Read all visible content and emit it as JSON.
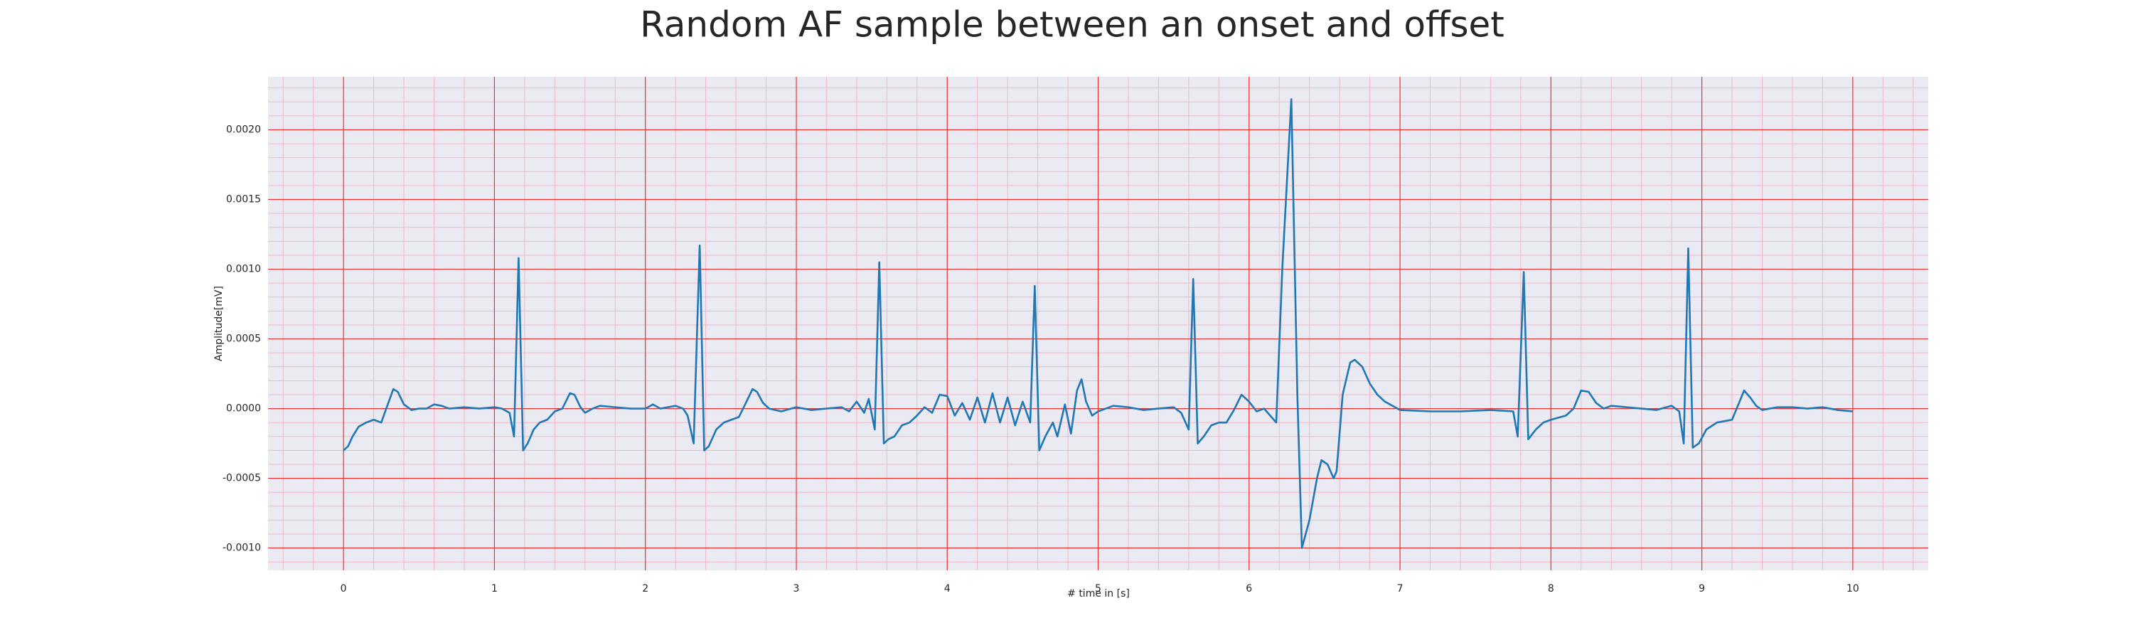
{
  "chart_data": {
    "type": "line",
    "title": "Random AF sample between an onset and offset",
    "xlabel": "# time in [s]",
    "ylabel": "Amplitude[mV]",
    "background": "#eaeaf2",
    "grid": true,
    "grid_color": "#ee3333",
    "minor_grid": true,
    "minor_grid_color": "#f4b6c6",
    "xlim": [
      -0.5,
      10.5
    ],
    "ylim": [
      -0.00116,
      0.00238
    ],
    "xticks": [
      0,
      1,
      2,
      3,
      4,
      5,
      6,
      7,
      8,
      9,
      10
    ],
    "yticks": [
      {
        "value": -0.001,
        "label": "-0.0010"
      },
      {
        "value": -0.0005,
        "label": "-0.0005"
      },
      {
        "value": 0,
        "label": "0.0000"
      },
      {
        "value": 0.0005,
        "label": "0.0005"
      },
      {
        "value": 0.001,
        "label": "0.0010"
      },
      {
        "value": 0.0015,
        "label": "0.0015"
      },
      {
        "value": 0.002,
        "label": "0.0020"
      }
    ],
    "series": [
      {
        "color": "#1f77b4",
        "x": [
          0,
          0.03,
          0.06,
          0.1,
          0.15,
          0.2,
          0.25,
          0.3,
          0.33,
          0.36,
          0.4,
          0.45,
          0.5,
          0.55,
          0.6,
          0.65,
          0.7,
          0.8,
          0.9,
          1.0,
          1.05,
          1.1,
          1.13,
          1.16,
          1.19,
          1.22,
          1.26,
          1.3,
          1.35,
          1.4,
          1.45,
          1.5,
          1.53,
          1.57,
          1.6,
          1.65,
          1.7,
          1.8,
          1.9,
          2.0,
          2.05,
          2.1,
          2.15,
          2.2,
          2.25,
          2.28,
          2.32,
          2.36,
          2.39,
          2.42,
          2.47,
          2.52,
          2.57,
          2.62,
          2.67,
          2.71,
          2.74,
          2.78,
          2.82,
          2.9,
          3.0,
          3.1,
          3.2,
          3.3,
          3.35,
          3.4,
          3.45,
          3.48,
          3.52,
          3.55,
          3.58,
          3.61,
          3.65,
          3.7,
          3.75,
          3.8,
          3.85,
          3.9,
          3.95,
          4.0,
          4.05,
          4.1,
          4.15,
          4.2,
          4.25,
          4.3,
          4.35,
          4.4,
          4.45,
          4.5,
          4.55,
          4.58,
          4.61,
          4.65,
          4.7,
          4.73,
          4.78,
          4.82,
          4.86,
          4.89,
          4.92,
          4.96,
          5.0,
          5.1,
          5.2,
          5.3,
          5.4,
          5.5,
          5.55,
          5.6,
          5.63,
          5.66,
          5.7,
          5.75,
          5.8,
          5.85,
          5.9,
          5.95,
          6.0,
          6.05,
          6.1,
          6.18,
          6.22,
          6.28,
          6.32,
          6.35,
          6.4,
          6.45,
          6.48,
          6.52,
          6.56,
          6.58,
          6.62,
          6.67,
          6.7,
          6.75,
          6.8,
          6.85,
          6.9,
          7.0,
          7.2,
          7.4,
          7.6,
          7.75,
          7.78,
          7.82,
          7.85,
          7.9,
          7.95,
          8.0,
          8.1,
          8.15,
          8.2,
          8.25,
          8.3,
          8.35,
          8.4,
          8.5,
          8.6,
          8.7,
          8.8,
          8.85,
          8.88,
          8.91,
          8.94,
          8.98,
          9.03,
          9.1,
          9.2,
          9.25,
          9.28,
          9.32,
          9.36,
          9.4,
          9.5,
          9.6,
          9.7,
          9.8,
          9.9,
          10.0
        ],
        "values": [
          -0.0003,
          -0.00027,
          -0.0002,
          -0.00013,
          -0.0001,
          -8e-05,
          -0.0001,
          5e-05,
          0.00014,
          0.00012,
          3e-05,
          -1e-05,
          0,
          0,
          3e-05,
          2e-05,
          0,
          1e-05,
          0,
          1e-05,
          0,
          -3e-05,
          -0.0002,
          0.00108,
          -0.0003,
          -0.00025,
          -0.00015,
          -0.0001,
          -8e-05,
          -2e-05,
          0,
          0.00011,
          0.0001,
          1e-05,
          -3e-05,
          0,
          2e-05,
          1e-05,
          0,
          0,
          3e-05,
          0,
          1e-05,
          2e-05,
          0,
          -5e-05,
          -0.00025,
          0.00117,
          -0.0003,
          -0.00027,
          -0.00015,
          -0.0001,
          -8e-05,
          -6e-05,
          5e-05,
          0.00014,
          0.00012,
          4e-05,
          0,
          -2e-05,
          1e-05,
          -1e-05,
          0,
          1e-05,
          -2e-05,
          5e-05,
          -3e-05,
          7e-05,
          -0.00015,
          0.00105,
          -0.00025,
          -0.00022,
          -0.0002,
          -0.00012,
          -0.0001,
          -5e-05,
          1e-05,
          -3e-05,
          0.0001,
          9e-05,
          -5e-05,
          4e-05,
          -8e-05,
          8e-05,
          -0.0001,
          0.00011,
          -0.0001,
          8e-05,
          -0.00012,
          5e-05,
          -0.0001,
          0.00088,
          -0.0003,
          -0.0002,
          -0.0001,
          -0.0002,
          3e-05,
          -0.00018,
          0.00013,
          0.00021,
          5e-05,
          -5e-05,
          -2e-05,
          2e-05,
          1e-05,
          -1e-05,
          0,
          1e-05,
          -3e-05,
          -0.00015,
          0.00093,
          -0.00025,
          -0.0002,
          -0.00012,
          -0.0001,
          -0.0001,
          -1e-05,
          0.0001,
          5e-05,
          -2e-05,
          0,
          -0.0001,
          0.001,
          0.00222,
          0.0001,
          -0.001,
          -0.0008,
          -0.0005,
          -0.00037,
          -0.0004,
          -0.0005,
          -0.00045,
          0.0001,
          0.00033,
          0.00035,
          0.0003,
          0.00018,
          0.0001,
          5e-05,
          -1e-05,
          -2e-05,
          -2e-05,
          -1e-05,
          -2e-05,
          -0.0002,
          0.00098,
          -0.00022,
          -0.00015,
          -0.0001,
          -8e-05,
          -5e-05,
          0,
          0.00013,
          0.00012,
          4e-05,
          0,
          2e-05,
          1e-05,
          0,
          -1e-05,
          2e-05,
          -2e-05,
          -0.00025,
          0.00115,
          -0.00028,
          -0.00025,
          -0.00015,
          -0.0001,
          -8e-05,
          5e-05,
          0.00013,
          8e-05,
          2e-05,
          -1e-05,
          1e-05,
          1e-05,
          0,
          1e-05,
          -1e-05,
          -2e-05
        ]
      }
    ]
  }
}
